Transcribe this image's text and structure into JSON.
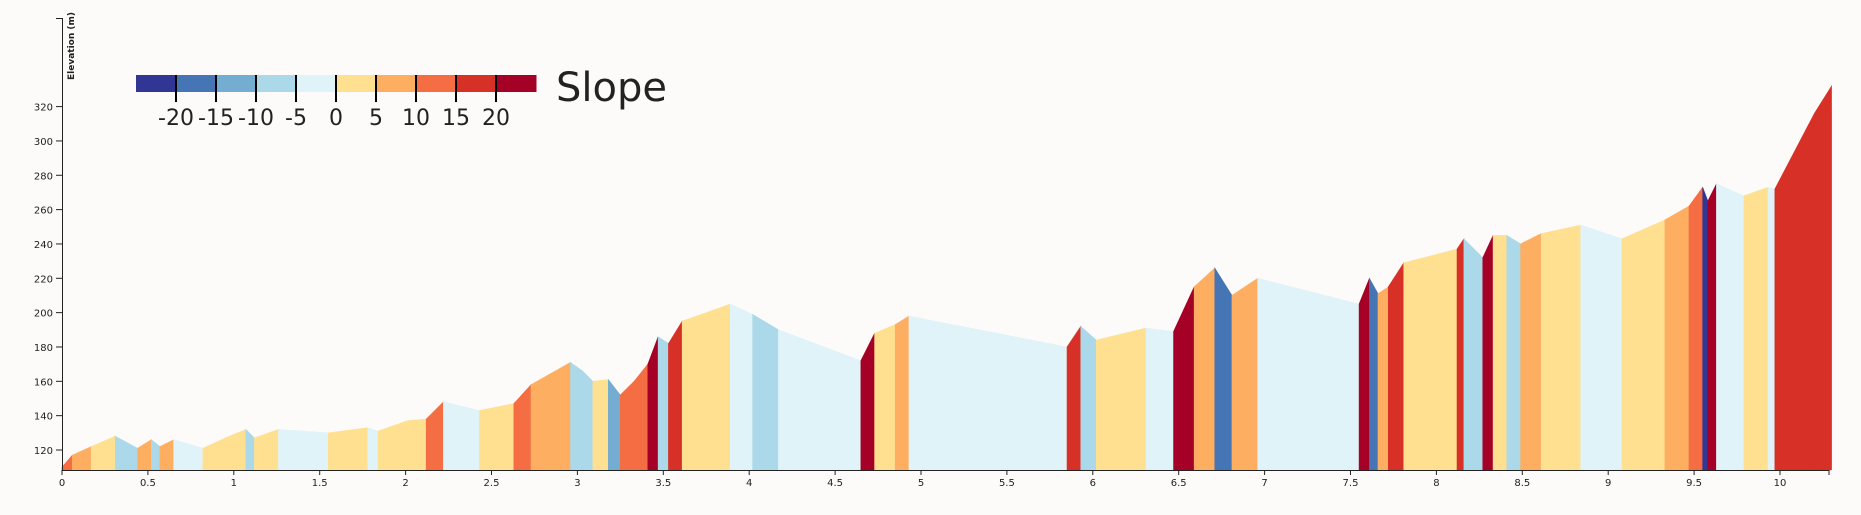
{
  "chart_data": {
    "type": "area",
    "title": "",
    "xlabel": "",
    "ylabel": "Elevation (m)",
    "xlim": [
      0,
      10.3
    ],
    "ylim": [
      110,
      332
    ],
    "x_ticks": [
      0,
      0.5,
      1,
      1.5,
      2,
      2.5,
      3,
      3.5,
      4,
      4.5,
      5,
      5.5,
      6,
      6.5,
      7,
      7.5,
      8,
      8.5,
      9,
      9.5,
      10
    ],
    "x_tick_labels": [
      "0",
      "0.5",
      "1",
      "1.5",
      "2",
      "2.5",
      "3",
      "3.5",
      "4",
      "4.5",
      "5",
      "5.5",
      "6",
      "6.5",
      "7",
      "7.5",
      "8",
      "8.5",
      "9",
      "9.5",
      "10"
    ],
    "y_ticks": [
      120,
      140,
      160,
      180,
      200,
      220,
      240,
      260,
      280,
      300,
      320
    ],
    "y_tick_labels": [
      "120",
      "140",
      "160",
      "180",
      "200",
      "220",
      "240",
      "260",
      "280",
      "300",
      "320"
    ],
    "grid": false,
    "profile": {
      "x": [
        0,
        0.06,
        0.17,
        0.31,
        0.44,
        0.52,
        0.57,
        0.65,
        0.82,
        0.95,
        1.07,
        1.12,
        1.26,
        1.55,
        1.78,
        1.84,
        2.01,
        2.12,
        2.22,
        2.43,
        2.63,
        2.73,
        2.96,
        3.03,
        3.09,
        3.18,
        3.25,
        3.33,
        3.41,
        3.47,
        3.53,
        3.61,
        3.89,
        4.02,
        4.17,
        4.65,
        4.73,
        4.85,
        4.93,
        5.85,
        5.93,
        6.02,
        6.31,
        6.47,
        6.59,
        6.71,
        6.81,
        6.96,
        7.55,
        7.61,
        7.66,
        7.72,
        7.81,
        8.12,
        8.16,
        8.27,
        8.33,
        8.41,
        8.49,
        8.61,
        8.84,
        9.08,
        9.33,
        9.47,
        9.55,
        9.58,
        9.63,
        9.79,
        9.93,
        9.97,
        10.2,
        10.3
      ],
      "elevation": [
        110,
        117,
        122,
        128,
        121,
        126,
        122,
        126,
        121,
        127,
        132,
        127,
        132,
        130,
        133,
        131,
        137,
        138,
        148,
        143,
        147,
        158,
        171,
        166,
        160,
        161,
        152,
        160,
        170,
        186,
        182,
        195,
        205,
        199,
        190,
        172,
        188,
        193,
        198,
        180,
        192,
        184,
        191,
        189,
        215,
        226,
        210,
        220,
        205,
        220,
        211,
        215,
        229,
        237,
        243,
        232,
        245,
        245,
        240,
        246,
        251,
        243,
        254,
        262,
        273,
        265,
        275,
        268,
        273,
        272,
        316,
        332
      ]
    },
    "segments": [
      {
        "x0": 0,
        "x1": 0.06,
        "slope": 12
      },
      {
        "x0": 0.06,
        "x1": 0.17,
        "slope": 8
      },
      {
        "x0": 0.17,
        "x1": 0.31,
        "slope": 3
      },
      {
        "x0": 0.31,
        "x1": 0.44,
        "slope": -6
      },
      {
        "x0": 0.44,
        "x1": 0.52,
        "slope": 7
      },
      {
        "x0": 0.52,
        "x1": 0.57,
        "slope": -7
      },
      {
        "x0": 0.57,
        "x1": 0.65,
        "slope": 7
      },
      {
        "x0": 0.65,
        "x1": 0.82,
        "slope": -3
      },
      {
        "x0": 0.82,
        "x1": 0.95,
        "slope": 4
      },
      {
        "x0": 0.95,
        "x1": 1.07,
        "slope": 4
      },
      {
        "x0": 1.07,
        "x1": 1.12,
        "slope": -8
      },
      {
        "x0": 1.12,
        "x1": 1.26,
        "slope": 4
      },
      {
        "x0": 1.26,
        "x1": 1.55,
        "slope": -1
      },
      {
        "x0": 1.55,
        "x1": 1.78,
        "slope": 2
      },
      {
        "x0": 1.78,
        "x1": 1.84,
        "slope": -3
      },
      {
        "x0": 1.84,
        "x1": 2.01,
        "slope": 3
      },
      {
        "x0": 2.01,
        "x1": 2.12,
        "slope": 1
      },
      {
        "x0": 2.12,
        "x1": 2.22,
        "slope": 10
      },
      {
        "x0": 2.22,
        "x1": 2.43,
        "slope": -2
      },
      {
        "x0": 2.43,
        "x1": 2.63,
        "slope": 2
      },
      {
        "x0": 2.63,
        "x1": 2.73,
        "slope": 11
      },
      {
        "x0": 2.73,
        "x1": 2.96,
        "slope": 6
      },
      {
        "x0": 2.96,
        "x1": 3.03,
        "slope": -7
      },
      {
        "x0": 3.03,
        "x1": 3.09,
        "slope": -8
      },
      {
        "x0": 3.09,
        "x1": 3.18,
        "slope": 1
      },
      {
        "x0": 3.18,
        "x1": 3.25,
        "slope": -13
      },
      {
        "x0": 3.25,
        "x1": 3.33,
        "slope": 10
      },
      {
        "x0": 3.33,
        "x1": 3.41,
        "slope": 12
      },
      {
        "x0": 3.41,
        "x1": 3.47,
        "slope": 27
      },
      {
        "x0": 3.47,
        "x1": 3.53,
        "slope": -7
      },
      {
        "x0": 3.53,
        "x1": 3.61,
        "slope": 16
      },
      {
        "x0": 3.61,
        "x1": 3.89,
        "slope": 4
      },
      {
        "x0": 3.89,
        "x1": 4.02,
        "slope": -5
      },
      {
        "x0": 4.02,
        "x1": 4.17,
        "slope": -6
      },
      {
        "x0": 4.17,
        "x1": 4.65,
        "slope": -4
      },
      {
        "x0": 4.65,
        "x1": 4.73,
        "slope": 20
      },
      {
        "x0": 4.73,
        "x1": 4.85,
        "slope": 4
      },
      {
        "x0": 4.85,
        "x1": 4.93,
        "slope": 6
      },
      {
        "x0": 4.93,
        "x1": 5.85,
        "slope": -2
      },
      {
        "x0": 5.85,
        "x1": 5.93,
        "slope": 15
      },
      {
        "x0": 5.93,
        "x1": 6.02,
        "slope": -9
      },
      {
        "x0": 6.02,
        "x1": 6.31,
        "slope": 2
      },
      {
        "x0": 6.31,
        "x1": 6.47,
        "slope": -1
      },
      {
        "x0": 6.47,
        "x1": 6.59,
        "slope": 22
      },
      {
        "x0": 6.59,
        "x1": 6.71,
        "slope": 9
      },
      {
        "x0": 6.71,
        "x1": 6.81,
        "slope": -16
      },
      {
        "x0": 6.81,
        "x1": 6.96,
        "slope": 7
      },
      {
        "x0": 6.96,
        "x1": 7.55,
        "slope": -3
      },
      {
        "x0": 7.55,
        "x1": 7.61,
        "slope": 25
      },
      {
        "x0": 7.61,
        "x1": 7.66,
        "slope": -18
      },
      {
        "x0": 7.66,
        "x1": 7.72,
        "slope": 7
      },
      {
        "x0": 7.72,
        "x1": 7.81,
        "slope": 16
      },
      {
        "x0": 7.81,
        "x1": 8.12,
        "slope": 3
      },
      {
        "x0": 8.12,
        "x1": 8.16,
        "slope": 15
      },
      {
        "x0": 8.16,
        "x1": 8.27,
        "slope": -10
      },
      {
        "x0": 8.27,
        "x1": 8.33,
        "slope": 22
      },
      {
        "x0": 8.33,
        "x1": 8.41,
        "slope": 0
      },
      {
        "x0": 8.41,
        "x1": 8.49,
        "slope": -6
      },
      {
        "x0": 8.49,
        "x1": 8.61,
        "slope": 5
      },
      {
        "x0": 8.61,
        "x1": 8.84,
        "slope": 2
      },
      {
        "x0": 8.84,
        "x1": 9.08,
        "slope": -3
      },
      {
        "x0": 9.08,
        "x1": 9.33,
        "slope": 4
      },
      {
        "x0": 9.33,
        "x1": 9.47,
        "slope": 6
      },
      {
        "x0": 9.47,
        "x1": 9.55,
        "slope": 14
      },
      {
        "x0": 9.55,
        "x1": 9.58,
        "slope": -27
      },
      {
        "x0": 9.58,
        "x1": 9.63,
        "slope": 20
      },
      {
        "x0": 9.63,
        "x1": 9.79,
        "slope": -4
      },
      {
        "x0": 9.79,
        "x1": 9.93,
        "slope": 4
      },
      {
        "x0": 9.93,
        "x1": 9.97,
        "slope": -3
      },
      {
        "x0": 9.97,
        "x1": 10.2,
        "slope": 19
      },
      {
        "x0": 10.2,
        "x1": 10.3,
        "slope": 16
      }
    ],
    "legend": {
      "title": "Slope",
      "placement": "top-left",
      "tick_values": [
        -20,
        -15,
        -10,
        -5,
        0,
        5,
        10,
        15,
        20
      ],
      "tick_labels": [
        "-20",
        "-15",
        "-10",
        "-5",
        "0",
        "5",
        "10",
        "15",
        "20"
      ],
      "bins": [
        {
          "max": -20,
          "color": "#313695"
        },
        {
          "max": -15,
          "color": "#4575b4"
        },
        {
          "max": -10,
          "color": "#74add1"
        },
        {
          "max": -5,
          "color": "#abd9e9"
        },
        {
          "max": 0,
          "color": "#e0f3f8"
        },
        {
          "max": 5,
          "color": "#fee090"
        },
        {
          "max": 10,
          "color": "#fdae61"
        },
        {
          "max": 15,
          "color": "#f46d43"
        },
        {
          "max": 20,
          "color": "#d73027"
        },
        {
          "max": null,
          "color": "#a50026"
        }
      ]
    }
  }
}
